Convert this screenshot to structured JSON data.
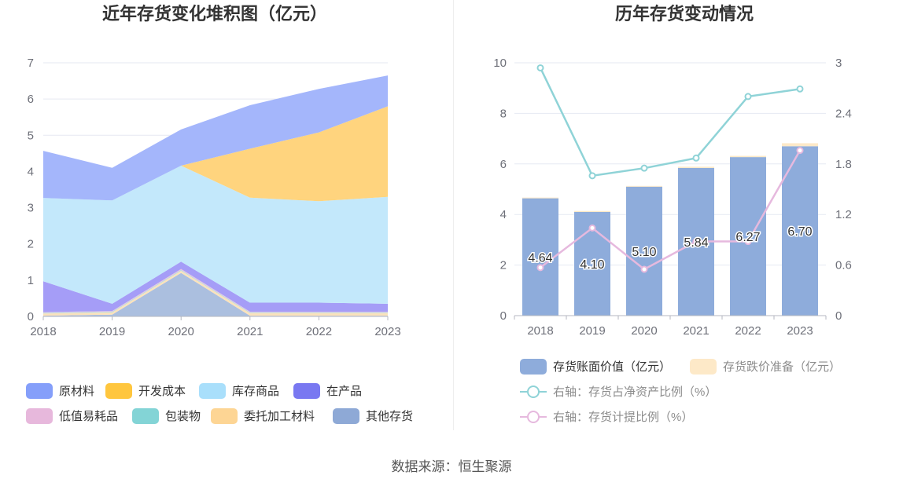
{
  "left": {
    "title": "近年存货变化堆积图（亿元）",
    "chart_data": {
      "type": "area",
      "stacked": true,
      "categories": [
        "2018",
        "2019",
        "2020",
        "2021",
        "2022",
        "2023"
      ],
      "ylim": [
        0,
        7
      ],
      "yticks": [
        0,
        1,
        2,
        3,
        4,
        5,
        6,
        7
      ],
      "grid": true,
      "legend_position": "bottom",
      "series": [
        {
          "name": "原材料",
          "color": "#a4b6fb",
          "values": [
            1.3,
            0.9,
            1.0,
            1.2,
            1.2,
            0.85
          ]
        },
        {
          "name": "开发成本",
          "color": "#ffd47e",
          "values": [
            0,
            0,
            0,
            1.35,
            1.9,
            2.5
          ]
        },
        {
          "name": "库存商品",
          "color": "#c3e8fb",
          "values": [
            2.3,
            2.85,
            2.65,
            2.9,
            2.8,
            2.95
          ]
        },
        {
          "name": "在产品",
          "color": "#a59df7",
          "values": [
            0.85,
            0.2,
            0.2,
            0.25,
            0.25,
            0.22
          ]
        },
        {
          "name": "低值易耗品",
          "color": "#e9bfe0",
          "values": [
            0.02,
            0.02,
            0.03,
            0.02,
            0.02,
            0.02
          ]
        },
        {
          "name": "包装物",
          "color": "#a9dfe0",
          "values": [
            0.02,
            0.02,
            0.02,
            0.02,
            0.02,
            0.02
          ]
        },
        {
          "name": "委托加工材料",
          "color": "#fbe2bc",
          "values": [
            0.06,
            0.06,
            0.06,
            0.07,
            0.07,
            0.07
          ]
        },
        {
          "name": "其他存货",
          "color": "#abbfdf",
          "values": [
            0.02,
            0.05,
            1.2,
            0.02,
            0.02,
            0.02
          ]
        }
      ]
    },
    "legend": [
      {
        "name": "原材料",
        "color": "#859ffa"
      },
      {
        "name": "开发成本",
        "color": "#ffc63e"
      },
      {
        "name": "库存商品",
        "color": "#a9dffb"
      },
      {
        "name": "在产品",
        "color": "#7978f1"
      },
      {
        "name": "低值易耗品",
        "color": "#e7b8dc"
      },
      {
        "name": "包装物",
        "color": "#83d4d6"
      },
      {
        "name": "委托加工材料",
        "color": "#fdd594"
      },
      {
        "name": "其他存货",
        "color": "#8ea9d6"
      }
    ]
  },
  "right": {
    "title": "历年存货变动情况",
    "chart_data": {
      "type": "bar",
      "categories": [
        "2018",
        "2019",
        "2020",
        "2021",
        "2022",
        "2023"
      ],
      "ylim": [
        0,
        10
      ],
      "yticks": [
        0,
        2,
        4,
        6,
        8,
        10
      ],
      "y2lim": [
        0,
        3
      ],
      "y2ticks": [
        "0",
        "0.6",
        "1.2",
        "1.8",
        "2.4",
        "3"
      ],
      "grid": true,
      "legend_position": "bottom",
      "series": [
        {
          "name": "存货账面价值（亿元）",
          "type": "bar",
          "color": "#8eacdb",
          "values": [
            4.64,
            4.1,
            5.1,
            5.84,
            6.27,
            6.7
          ],
          "labels": [
            "4.64",
            "4.10",
            "5.10",
            "5.84",
            "6.27",
            "6.70"
          ]
        },
        {
          "name": "存货跌价准备（亿元）",
          "type": "bar",
          "color": "#fde9c8",
          "values": [
            0.03,
            0.04,
            0.03,
            0.05,
            0.05,
            0.12
          ]
        },
        {
          "name": "右轴：存货占净资产比例（%）",
          "type": "line",
          "axis": "right",
          "color": "#8fd3d7",
          "values": [
            2.94,
            1.66,
            1.75,
            1.87,
            2.6,
            2.69
          ]
        },
        {
          "name": "右轴：存货计提比例（%）",
          "type": "line",
          "axis": "right",
          "color": "#e6b9de",
          "values": [
            0.57,
            1.04,
            0.55,
            0.88,
            0.88,
            1.96
          ]
        }
      ]
    }
  },
  "source": "数据来源：恒生聚源"
}
